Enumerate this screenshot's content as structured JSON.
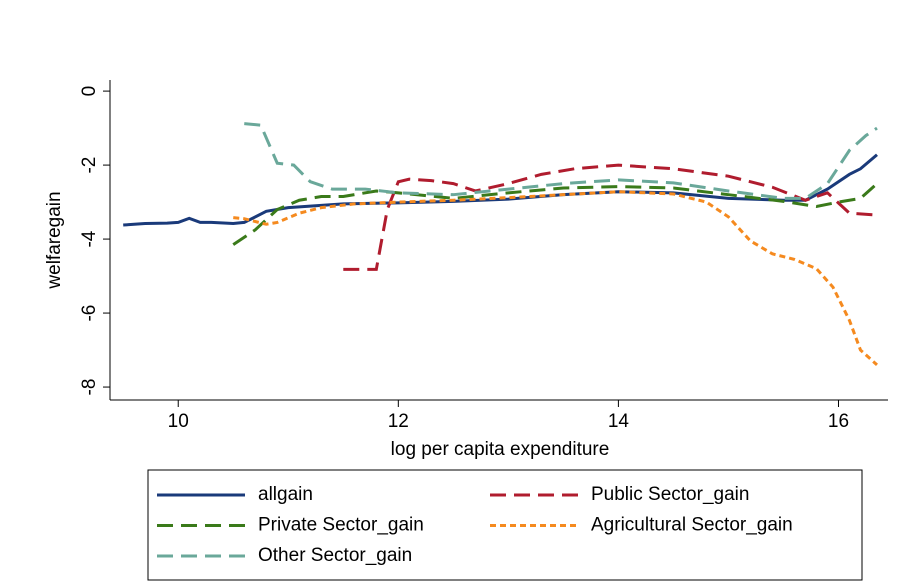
{
  "chart_data": {
    "type": "line",
    "x_label": "log per capita expenditure",
    "y_label": "welfaregain",
    "xlim": [
      9.38,
      16.45
    ],
    "ylim": [
      -8.35,
      0.3
    ],
    "xticks": [
      10,
      12,
      14,
      16
    ],
    "yticks": [
      0,
      -2,
      -4,
      -6,
      -8
    ],
    "series": [
      {
        "name": "allgain",
        "color": "#1a3a7a",
        "dash": "none",
        "x": [
          9.5,
          9.6,
          9.7,
          9.9,
          10.0,
          10.1,
          10.2,
          10.3,
          10.5,
          10.6,
          10.8,
          11.0,
          11.5,
          12.0,
          12.5,
          13.0,
          13.5,
          14.0,
          14.5,
          15.0,
          15.5,
          15.7,
          15.9,
          16.1,
          16.2,
          16.35
        ],
        "values": [
          -3.62,
          -3.6,
          -3.58,
          -3.57,
          -3.55,
          -3.44,
          -3.55,
          -3.55,
          -3.58,
          -3.55,
          -3.25,
          -3.15,
          -3.05,
          -3.02,
          -2.98,
          -2.92,
          -2.8,
          -2.72,
          -2.75,
          -2.9,
          -2.95,
          -2.95,
          -2.65,
          -2.25,
          -2.1,
          -1.72
        ]
      },
      {
        "name": "Public Sector_gain",
        "color": "#b01c2e",
        "dash": "16 8",
        "x": [
          11.5,
          11.8,
          11.9,
          12.0,
          12.1,
          12.3,
          12.5,
          12.7,
          13.0,
          13.3,
          13.6,
          14.0,
          14.5,
          15.0,
          15.4,
          15.7,
          15.9,
          16.1,
          16.35
        ],
        "values": [
          -4.82,
          -4.82,
          -3.2,
          -2.45,
          -2.38,
          -2.42,
          -2.5,
          -2.7,
          -2.5,
          -2.25,
          -2.1,
          -2.0,
          -2.1,
          -2.3,
          -2.6,
          -2.95,
          -2.75,
          -3.3,
          -3.35
        ]
      },
      {
        "name": "Private Sector_gain",
        "color": "#3a7a1a",
        "dash": "16 8",
        "x": [
          10.5,
          10.7,
          10.9,
          11.1,
          11.3,
          11.5,
          11.8,
          12.0,
          12.5,
          13.0,
          13.5,
          14.0,
          14.5,
          15.0,
          15.5,
          15.8,
          16.0,
          16.2,
          16.35
        ],
        "values": [
          -4.15,
          -3.75,
          -3.2,
          -2.95,
          -2.85,
          -2.85,
          -2.7,
          -2.75,
          -2.9,
          -2.75,
          -2.62,
          -2.58,
          -2.62,
          -2.8,
          -2.98,
          -3.12,
          -3.0,
          -2.9,
          -2.5
        ]
      },
      {
        "name": "Agricultural Sector_gain",
        "color": "#f58a1f",
        "dash": "6 4",
        "x": [
          10.5,
          10.6,
          10.8,
          10.9,
          11.1,
          11.3,
          11.6,
          12.0,
          12.5,
          13.0,
          13.5,
          14.0,
          14.5,
          14.8,
          15.0,
          15.2,
          15.4,
          15.6,
          15.8,
          15.95,
          16.1,
          16.2,
          16.35
        ],
        "values": [
          -3.42,
          -3.45,
          -3.6,
          -3.55,
          -3.3,
          -3.15,
          -3.05,
          -3.0,
          -2.95,
          -2.88,
          -2.8,
          -2.72,
          -2.78,
          -3.0,
          -3.4,
          -4.05,
          -4.4,
          -4.55,
          -4.8,
          -5.3,
          -6.2,
          -7.0,
          -7.4
        ]
      },
      {
        "name": "Other Sector_gain",
        "color": "#6aa89a",
        "dash": "16 8",
        "x": [
          10.6,
          10.75,
          10.9,
          11.05,
          11.2,
          11.4,
          11.7,
          12.0,
          12.5,
          13.0,
          13.5,
          14.0,
          14.5,
          15.0,
          15.5,
          15.7,
          15.9,
          16.1,
          16.25,
          16.35
        ],
        "values": [
          -0.88,
          -0.92,
          -1.95,
          -2.0,
          -2.45,
          -2.65,
          -2.65,
          -2.75,
          -2.8,
          -2.65,
          -2.5,
          -2.4,
          -2.48,
          -2.7,
          -2.9,
          -2.9,
          -2.5,
          -1.6,
          -1.2,
          -1.0
        ]
      }
    ]
  }
}
